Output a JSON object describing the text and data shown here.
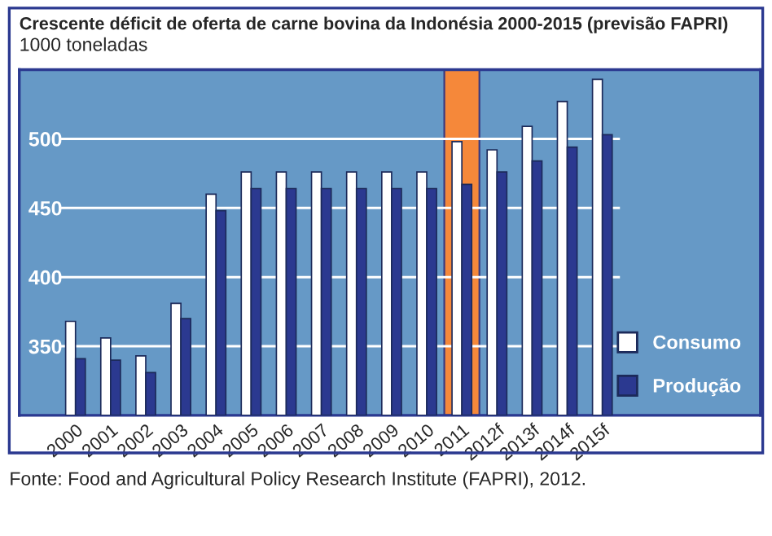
{
  "chart_data": {
    "type": "bar",
    "title": "Crescente déficit de oferta de carne bovina da Indonésia 2000-2015 (previsão FAPRI)",
    "subtitle": "1000 toneladas",
    "categories": [
      "2000",
      "2001",
      "2002",
      "2003",
      "2004",
      "2005",
      "2006",
      "2007",
      "2008",
      "2009",
      "2010",
      "2011",
      "2012f",
      "2013f",
      "2014f",
      "2015f"
    ],
    "series": [
      {
        "name": "Consumo",
        "color": "#ffffff",
        "values": [
          368,
          356,
          343,
          381,
          460,
          476,
          476,
          476,
          476,
          476,
          476,
          498,
          492,
          509,
          527,
          543
        ]
      },
      {
        "name": "Produção",
        "color": "#2b3990",
        "values": [
          341,
          340,
          331,
          370,
          448,
          464,
          464,
          464,
          464,
          464,
          464,
          467,
          476,
          484,
          494,
          503
        ]
      }
    ],
    "ylim": [
      300,
      550
    ],
    "yticks": [
      350,
      400,
      450,
      500
    ],
    "grid": "y",
    "legend": "bottom right",
    "bands": [
      {
        "axis": "x",
        "from": "2011",
        "to": "2011",
        "color": "#f5883a"
      }
    ],
    "annotations": [
      "Fonte: Food and Agricultural Policy Research Institute (FAPRI), 2012."
    ]
  }
}
